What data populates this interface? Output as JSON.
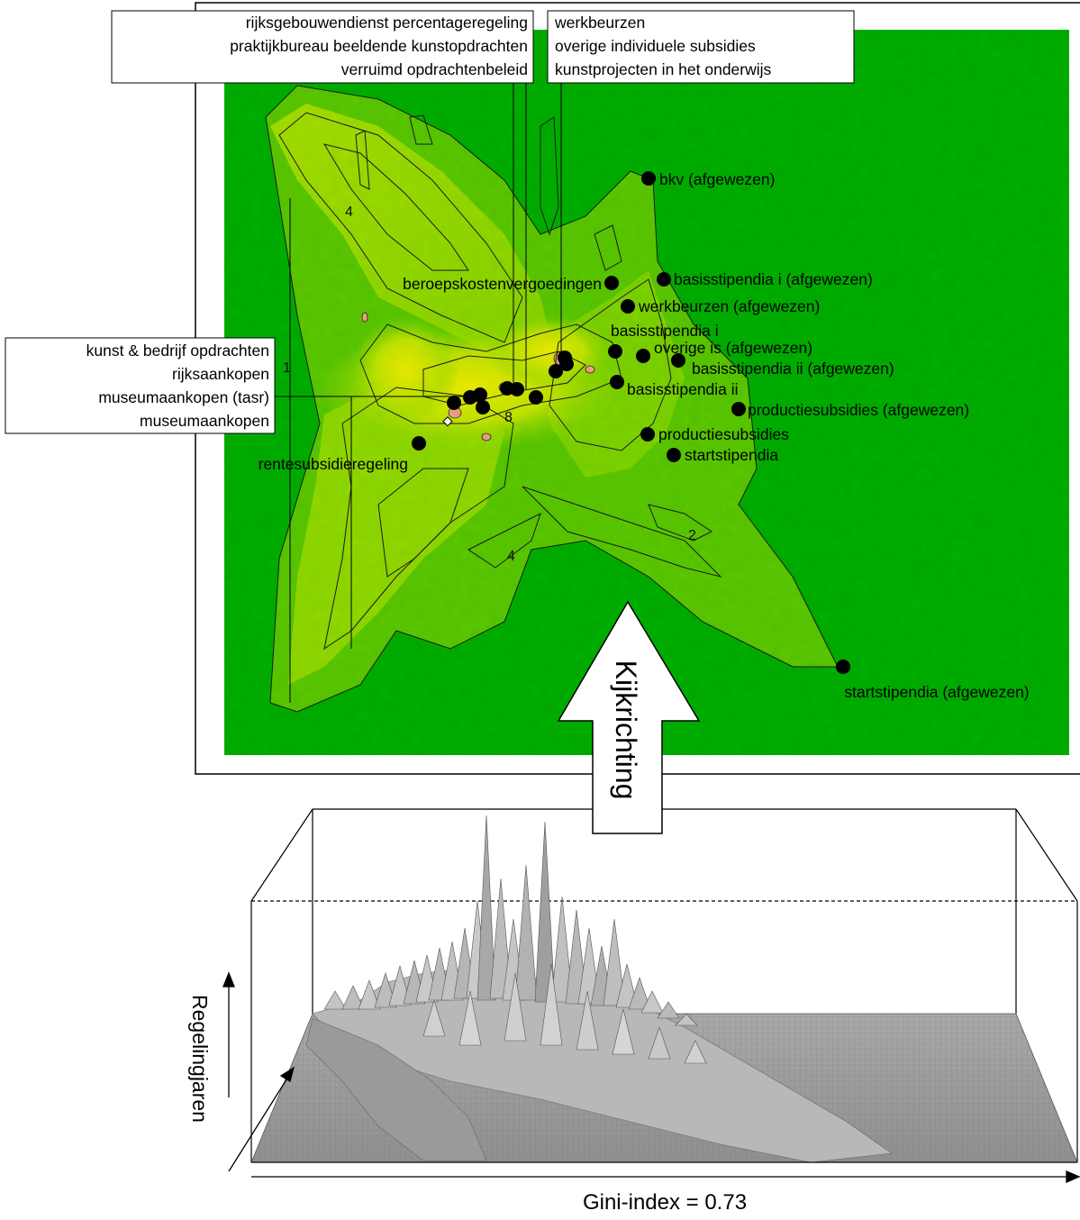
{
  "chart_data": [
    {
      "type": "heatmap",
      "subtype": "contour-with-labelled-points",
      "colors": {
        "background": "#00a600",
        "low": "#00a600",
        "mid": "#7fd000",
        "high": "#e6e600",
        "peak": "#e8a080"
      },
      "contour_labels": [
        "4",
        "1",
        "8",
        "4",
        "2"
      ],
      "points": [
        {
          "label": "bkv (afgewezen)"
        },
        {
          "label": "basisstipendia i (afgewezen)"
        },
        {
          "label": "beroepskostenvergoedingen"
        },
        {
          "label": "werkbeurzen (afgewezen)"
        },
        {
          "label": "basisstipendia i"
        },
        {
          "label": "overige is (afgewezen)"
        },
        {
          "label": "basisstipendia ii (afgewezen)"
        },
        {
          "label": "basisstipendia ii"
        },
        {
          "label": "productiesubsidies (afgewezen)"
        },
        {
          "label": "productiesubsidies"
        },
        {
          "label": "startstipendia"
        },
        {
          "label": "startstipendia (afgewezen)"
        },
        {
          "label": "rentesubsidieregeling"
        }
      ],
      "callout_groups": [
        {
          "lines": [
            "rijksgebouwendienst percentageregeling",
            "praktijkbureau beeldende kunstopdrachten",
            "verruimd opdrachtenbeleid"
          ]
        },
        {
          "lines": [
            "werkbeurzen",
            "overige individuele subsidies",
            "kunstprojecten in het onderwijs"
          ]
        },
        {
          "lines": [
            "kunst & bedrijf opdrachten",
            "rijksaankopen",
            "museumaankopen (tasr)",
            "museumaankopen"
          ]
        }
      ]
    },
    {
      "type": "surface",
      "xlabel": "Gini-index =   0.73",
      "ylabel": "Regelingjaren",
      "arrow_label": "Kijkrichting",
      "color": "#c8c8c8"
    }
  ]
}
